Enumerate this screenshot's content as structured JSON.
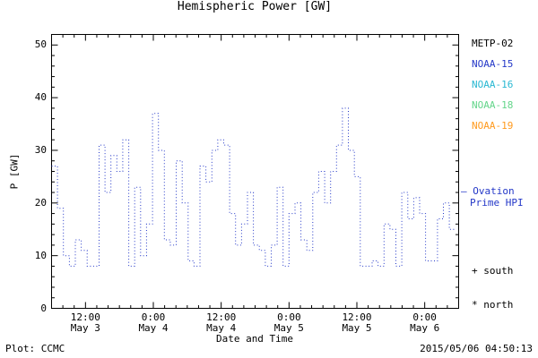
{
  "footer": {
    "left": "Plot: CCMC",
    "right": "2015/05/06 04:50:13"
  },
  "legend": {
    "satellites": [
      {
        "label": "METP-02",
        "color": "#000000"
      },
      {
        "label": "NOAA-15",
        "color": "#2438c8"
      },
      {
        "label": "NOAA-16",
        "color": "#29b8d2"
      },
      {
        "label": "NOAA-18",
        "color": "#63d58a"
      },
      {
        "label": "NOAA-19",
        "color": "#ff9a1e"
      }
    ],
    "ovation_line1": "— Ovation",
    "ovation_line2": "Prime HPI",
    "ovation_color": "#2438c8",
    "south_marker": "+ south",
    "north_marker": "* north"
  },
  "chart_data": {
    "type": "line",
    "title": "Hemispheric Power [GW]",
    "xlabel": "Date and Time",
    "ylabel": "P [GW]",
    "ylim": [
      0,
      52
    ],
    "yticks": [
      0,
      10,
      20,
      30,
      40,
      50
    ],
    "y_minor_step": 2,
    "xlim": [
      6,
      78
    ],
    "x_unit": "hours since 2015-05-03 00:00",
    "x_minor_step": 2,
    "xticks": [
      {
        "hours": 12,
        "time": "12:00",
        "date": "May 3"
      },
      {
        "hours": 24,
        "time": "0:00",
        "date": "May 4"
      },
      {
        "hours": 36,
        "time": "12:00",
        "date": "May 4"
      },
      {
        "hours": 48,
        "time": "0:00",
        "date": "May 5"
      },
      {
        "hours": 60,
        "time": "12:00",
        "date": "May 5"
      },
      {
        "hours": 72,
        "time": "0:00",
        "date": "May 6"
      }
    ],
    "grid": false,
    "legend_position": "right-outside",
    "series": [
      {
        "name": "Ovation Prime HPI",
        "color": "#2438c8",
        "style": "dotted-step",
        "x_start_hours": 6,
        "x_step_hours": 1.05,
        "values": [
          27,
          19,
          10,
          8,
          13,
          11,
          8,
          8,
          31,
          22,
          29,
          26,
          32,
          8,
          23,
          10,
          16,
          37,
          30,
          13,
          12,
          28,
          20,
          9,
          8,
          27,
          24,
          30,
          32,
          31,
          18,
          12,
          16,
          22,
          12,
          11,
          8,
          12,
          23,
          8,
          18,
          20,
          13,
          11,
          22,
          26,
          20,
          26,
          31,
          38,
          30,
          25,
          8,
          8,
          9,
          8,
          16,
          15,
          8,
          22,
          17,
          21,
          18,
          9,
          9,
          17,
          20,
          15
        ]
      }
    ]
  }
}
